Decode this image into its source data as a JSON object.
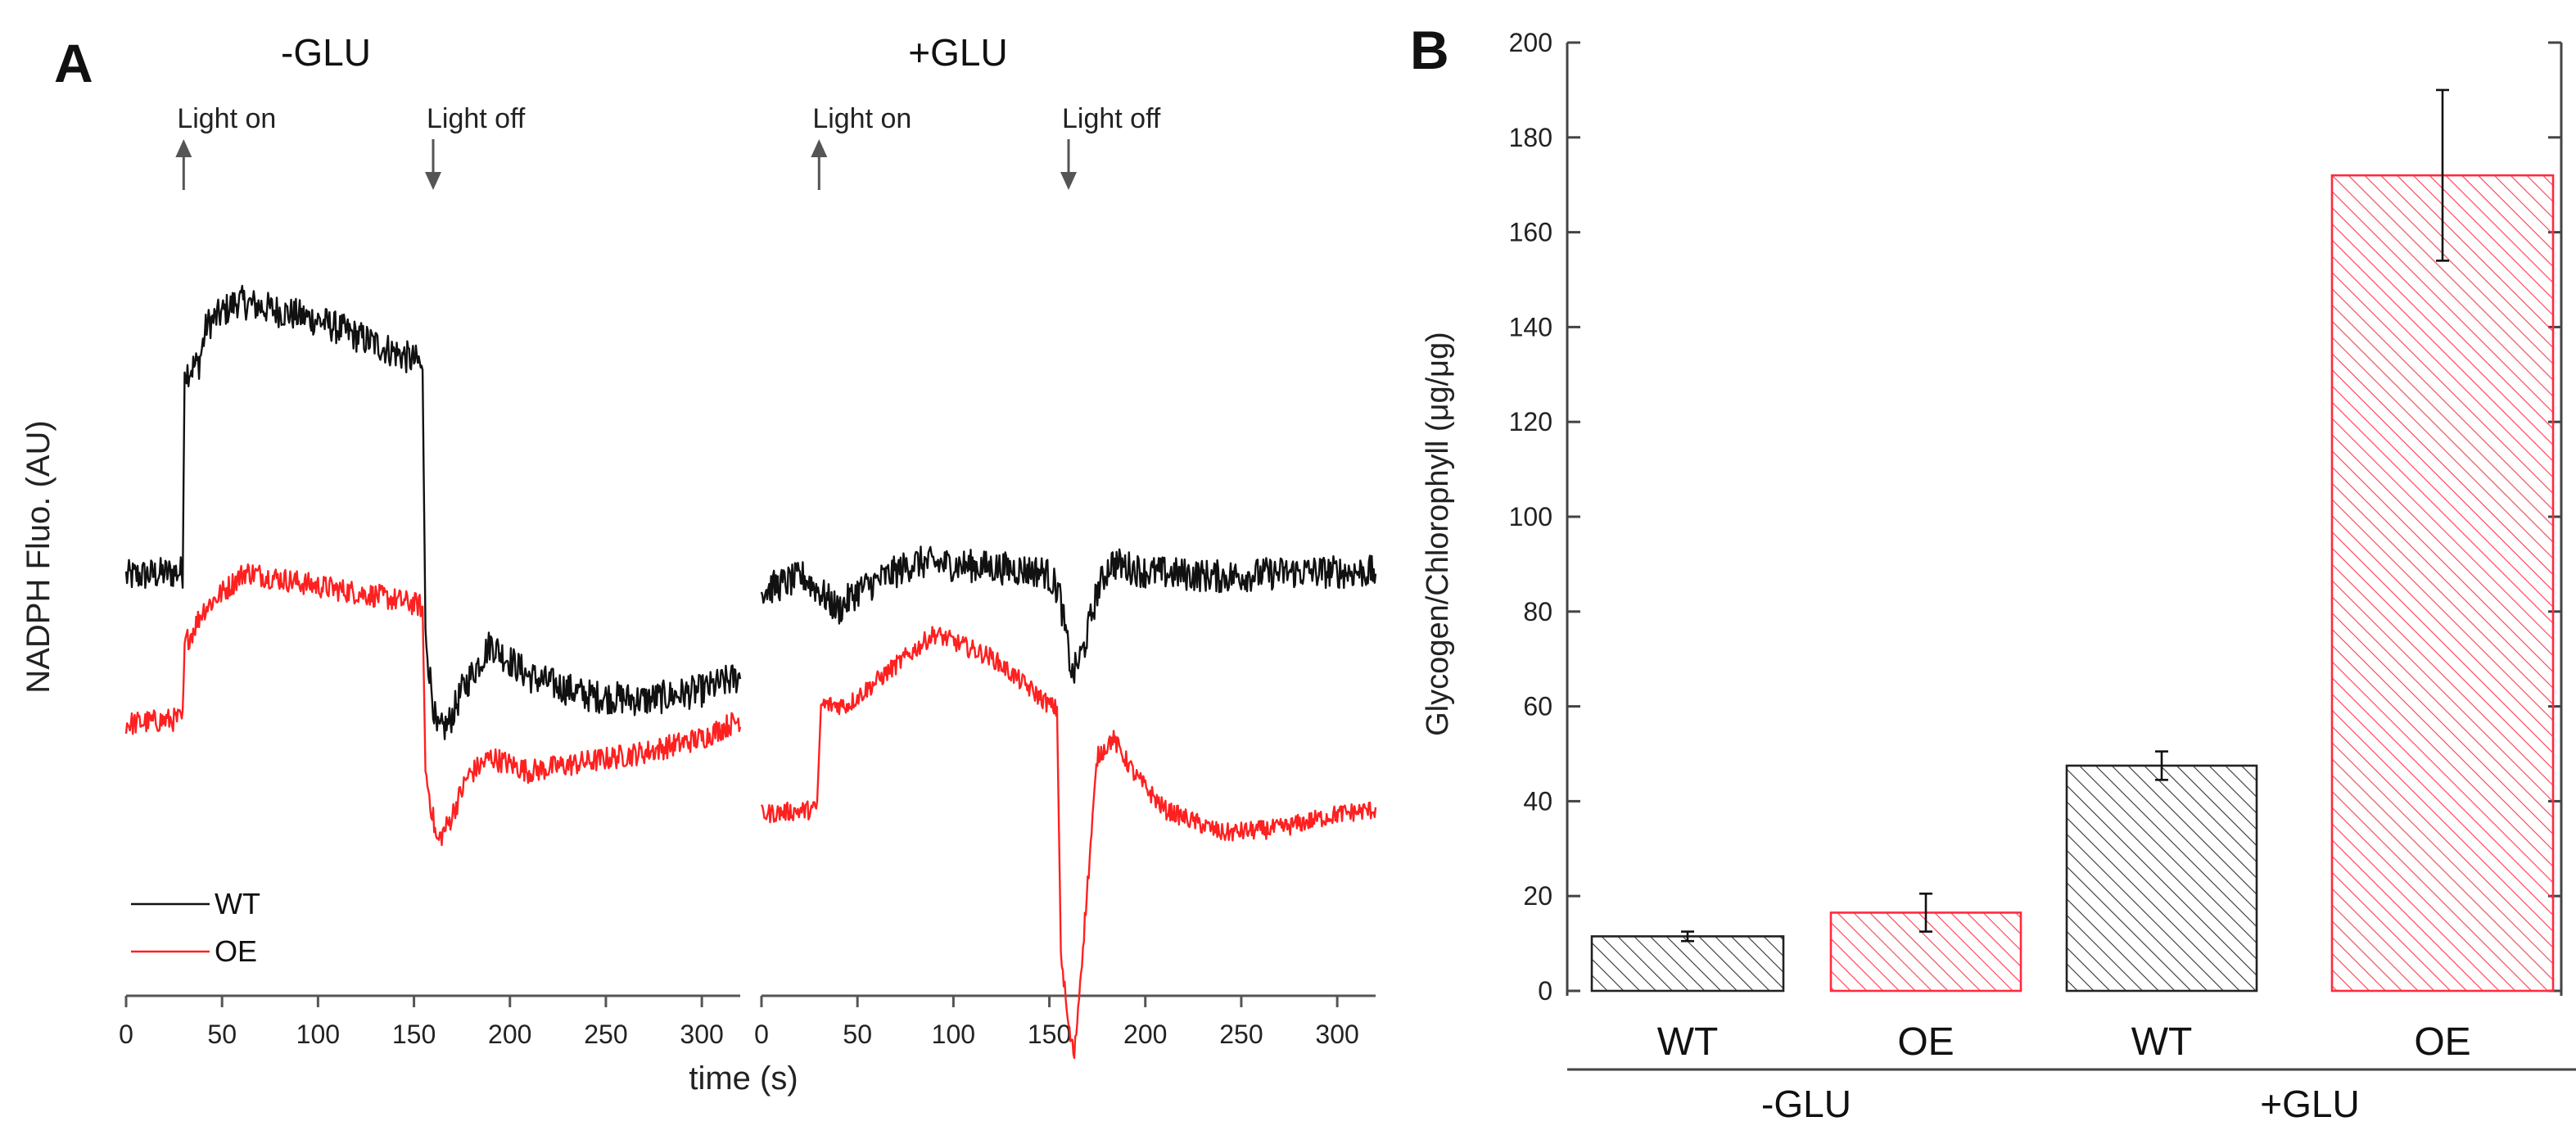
{
  "chart_data": [
    {
      "panel": "A",
      "type": "line",
      "ylabel": "NADPH Fluo. (AU)",
      "xlabel": "time (s)",
      "xlim": [
        0,
        320
      ],
      "xticks": [
        0,
        50,
        100,
        150,
        200,
        250,
        300
      ],
      "legend": {
        "position": "bottom-left",
        "entries": [
          "WT",
          "OE"
        ]
      },
      "colors": {
        "WT": "#111111",
        "OE": "#ff2020"
      },
      "subplots": [
        {
          "title": "-GLU",
          "annotations": [
            {
              "label": "Light on",
              "x": 30,
              "arrow": "up"
            },
            {
              "label": "Light off",
              "x": 160,
              "arrow": "down"
            }
          ],
          "series": [
            {
              "name": "WT",
              "noise": 0.035,
              "points": [
                [
                  0,
                  0.51
                ],
                [
                  28,
                  0.52
                ],
                [
                  29.5,
                  0.52
                ],
                [
                  30.5,
                  0.94
                ],
                [
                  38,
                  0.96
                ],
                [
                  42,
                  1.04
                ],
                [
                  58,
                  1.09
                ],
                [
                  100,
                  1.05
                ],
                [
                  130,
                  1.0
                ],
                [
                  153,
                  0.96
                ],
                [
                  154.5,
                  0.93
                ],
                [
                  156,
                  0.4
                ],
                [
                  158,
                  0.31
                ],
                [
                  162,
                  0.18
                ],
                [
                  168,
                  0.2
                ],
                [
                  175,
                  0.27
                ],
                [
                  190,
                  0.37
                ],
                [
                  195,
                  0.35
                ],
                [
                  210,
                  0.3
                ],
                [
                  240,
                  0.26
                ],
                [
                  270,
                  0.25
                ],
                [
                  300,
                  0.27
                ],
                [
                  320,
                  0.3
                ]
              ]
            },
            {
              "name": "OE",
              "noise": 0.025,
              "points": [
                [
                  0,
                  0.2
                ],
                [
                  28,
                  0.21
                ],
                [
                  29.5,
                  0.21
                ],
                [
                  30.5,
                  0.37
                ],
                [
                  34,
                  0.39
                ],
                [
                  40,
                  0.44
                ],
                [
                  62,
                  0.52
                ],
                [
                  100,
                  0.49
                ],
                [
                  130,
                  0.47
                ],
                [
                  153,
                  0.45
                ],
                [
                  154.5,
                  0.44
                ],
                [
                  156,
                  0.1
                ],
                [
                  162,
                  -0.05
                ],
                [
                  168,
                  -0.01
                ],
                [
                  178,
                  0.09
                ],
                [
                  190,
                  0.13
                ],
                [
                  210,
                  0.1
                ],
                [
                  240,
                  0.12
                ],
                [
                  270,
                  0.14
                ],
                [
                  300,
                  0.17
                ],
                [
                  320,
                  0.21
                ]
              ]
            }
          ]
        },
        {
          "title": "+GLU",
          "annotations": [
            {
              "label": "Light on",
              "x": 30,
              "arrow": "up"
            },
            {
              "label": "Light off",
              "x": 160,
              "arrow": "down"
            }
          ],
          "series": [
            {
              "name": "WT",
              "noise": 0.035,
              "points": [
                [
                  0,
                  0.48
                ],
                [
                  22,
                  0.51
                ],
                [
                  30,
                  0.48
                ],
                [
                  40,
                  0.44
                ],
                [
                  50,
                  0.48
                ],
                [
                  80,
                  0.54
                ],
                [
                  120,
                  0.53
                ],
                [
                  148,
                  0.52
                ],
                [
                  155,
                  0.48
                ],
                [
                  162,
                  0.3
                ],
                [
                  168,
                  0.36
                ],
                [
                  175,
                  0.48
                ],
                [
                  182,
                  0.54
                ],
                [
                  200,
                  0.52
                ],
                [
                  240,
                  0.51
                ],
                [
                  280,
                  0.52
                ],
                [
                  320,
                  0.52
                ]
              ]
            },
            {
              "name": "OE",
              "noise": 0.02,
              "points": [
                [
                  0,
                  0.01
                ],
                [
                  28,
                  0.02
                ],
                [
                  29,
                  0.03
                ],
                [
                  31,
                  0.24
                ],
                [
                  45,
                  0.24
                ],
                [
                  60,
                  0.29
                ],
                [
                  90,
                  0.39
                ],
                [
                  120,
                  0.34
                ],
                [
                  150,
                  0.24
                ],
                [
                  154,
                  0.23
                ],
                [
                  156,
                  -0.28
                ],
                [
                  160,
                  -0.44
                ],
                [
                  163,
                  -0.5
                ],
                [
                  168,
                  -0.24
                ],
                [
                  175,
                  0.13
                ],
                [
                  183,
                  0.17
                ],
                [
                  195,
                  0.09
                ],
                [
                  210,
                  0.02
                ],
                [
                  240,
                  -0.03
                ],
                [
                  270,
                  -0.02
                ],
                [
                  300,
                  0.01
                ],
                [
                  320,
                  0.02
                ]
              ]
            }
          ]
        }
      ]
    },
    {
      "panel": "B",
      "type": "bar",
      "ylabel": "Glycogen/Chlorophyll (μg/μg)",
      "ylim": [
        0,
        200
      ],
      "yticks": [
        0,
        20,
        40,
        60,
        80,
        100,
        120,
        140,
        160,
        180,
        200
      ],
      "categories": [
        "WT",
        "OE",
        "WT",
        "OE"
      ],
      "groups": [
        {
          "label": "-GLU",
          "members": [
            0,
            1
          ]
        },
        {
          "label": "+GLU",
          "members": [
            2,
            3
          ]
        }
      ],
      "values": [
        11.5,
        16.5,
        47.5,
        172
      ],
      "errors": [
        1.0,
        4.0,
        3.0,
        18.0
      ],
      "colors": [
        "#222222",
        "#ff2a40",
        "#222222",
        "#ff2a40"
      ],
      "pattern": "diagonal-hatch"
    }
  ]
}
